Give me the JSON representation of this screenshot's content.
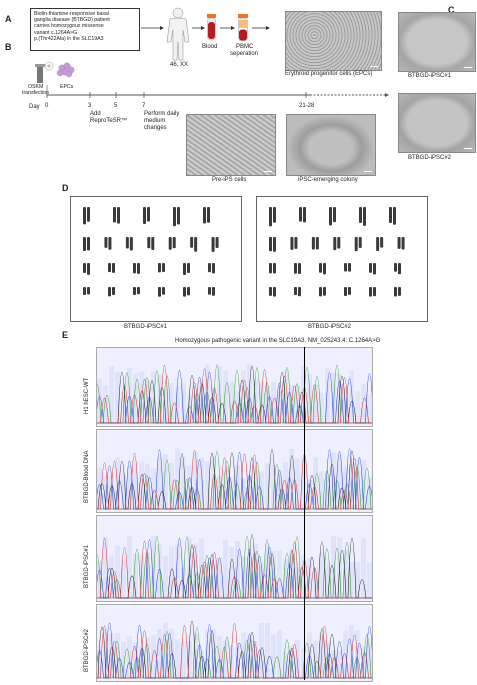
{
  "panel_letters": {
    "a": "A",
    "b": "B",
    "c": "C",
    "d": "D",
    "e": "E"
  },
  "patient_box": {
    "line1": "Biotin-thiamine-responsive basal",
    "line2": "ganglia disease (BTBGD) patient",
    "line3": "carries homozygous missense",
    "line4": "variant c.1264A>G",
    "line5": "p.(Thr422Ala) in the SLC19A3"
  },
  "karyotype_label": "46, XX",
  "blood_label": "Blood",
  "pbmc_label_1": "PBMC",
  "pbmc_label_2": "seperation",
  "epc_caption": "Erythroid progenitor cells (EPCs)",
  "osmk_label_1": "OSKM",
  "osmk_label_2": "transfection",
  "epcs_small": "EPCs",
  "timeline": {
    "day_label": "Day",
    "ticks": [
      "0",
      "3",
      "5",
      "7",
      "21-28"
    ],
    "step1_1": "Add",
    "step1_2": "ReproTeSR™",
    "step2_1": "Perform daily",
    "step2_2": "medium",
    "step2_3": "changes"
  },
  "pre_ips_caption": "Pre-iPS cells",
  "ipsc_colony_caption": "iPSC-emerging colony",
  "clone1_caption": "BTBGD-iPSC#1",
  "clone2_caption": "BTBGD-iPSC#2",
  "karyo1_caption": "BTBGD-iPSC#1",
  "karyo2_caption": "BTBGD-iPSC#2",
  "karyo_marker": "?",
  "seq_title": "Homozygous pathogenic variant in the SLC19A3. NM_025243.4: C.1264A>G",
  "seq_rows": [
    "H1 hESC-WT",
    "BTBGD-Blood DNA",
    "BTBGD-iPSC#1",
    "BTBGD-iPSC#2"
  ],
  "colors": {
    "A": "#2ca02c",
    "C": "#1f3fd4",
    "G": "#222222",
    "T": "#d62728",
    "bg": "#eef0ff",
    "marker": "#000000"
  }
}
